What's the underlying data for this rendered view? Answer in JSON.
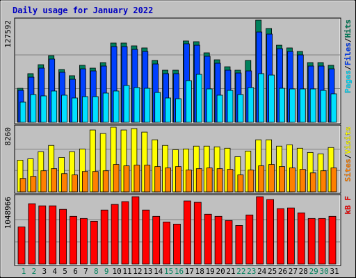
{
  "title": "Daily usage for January 2022",
  "legend_separator": "/",
  "chart_data": [
    {
      "type": "bar",
      "ylim": [
        0,
        127592
      ],
      "yticks": [
        127592
      ],
      "series": [
        {
          "name": "Hits",
          "color": "#00805c",
          "values": [
            42500,
            60800,
            72000,
            83300,
            66000,
            58200,
            71200,
            67700,
            74600,
            99000,
            99000,
            95500,
            92900,
            77300,
            65100,
            65100,
            101600,
            100700,
            86800,
            78100,
            69400,
            65100,
            77300,
            127592,
            117200,
            96300,
            92900,
            88500,
            74600,
            74600,
            71200
          ]
        },
        {
          "name": "Files",
          "color": "#0040ff",
          "values": [
            39900,
            56400,
            67700,
            79000,
            62500,
            53800,
            66800,
            64200,
            70300,
            94600,
            94600,
            91100,
            88500,
            72900,
            60800,
            60800,
            98100,
            96300,
            82500,
            73800,
            65100,
            61600,
            64200,
            112800,
            110200,
            92000,
            88500,
            84200,
            70300,
            70300,
            66800
          ]
        },
        {
          "name": "Pages",
          "color": "#00e0ff",
          "values": [
            25200,
            34700,
            33000,
            39100,
            33900,
            30400,
            32100,
            32100,
            36500,
            39100,
            46000,
            43400,
            42500,
            37300,
            30400,
            29500,
            52100,
            59900,
            41700,
            33900,
            39900,
            34700,
            43400,
            60800,
            59000,
            42500,
            41700,
            41700,
            41700,
            39900,
            35600
          ]
        }
      ]
    },
    {
      "type": "bar",
      "ylim": [
        0,
        8260
      ],
      "yticks": [
        8260
      ],
      "series": [
        {
          "name": "Visits",
          "color": "#ffff00",
          "values": [
            4040,
            4220,
            5120,
            5930,
            4400,
            5120,
            5480,
            7900,
            7450,
            8260,
            7900,
            8080,
            7630,
            6650,
            5930,
            5390,
            5480,
            5840,
            5840,
            5750,
            5570,
            4490,
            5210,
            6650,
            6650,
            5840,
            6020,
            5570,
            5030,
            4850,
            5660
          ]
        },
        {
          "name": "Sites",
          "color": "#ff8000",
          "values": [
            1710,
            1980,
            2690,
            2960,
            2330,
            2160,
            2600,
            2600,
            2690,
            3500,
            3320,
            3410,
            3410,
            3230,
            3050,
            3230,
            2780,
            2960,
            3050,
            2960,
            2870,
            2160,
            2780,
            3320,
            3500,
            3230,
            3050,
            2870,
            2420,
            2690,
            3050
          ]
        }
      ]
    },
    {
      "type": "bar",
      "ylim": [
        0,
        1048966
      ],
      "yticks": [
        1048966
      ],
      "categories": [
        "1",
        "2",
        "3",
        "4",
        "5",
        "6",
        "7",
        "8",
        "9",
        "10",
        "11",
        "12",
        "13",
        "14",
        "15",
        "16",
        "17",
        "18",
        "19",
        "20",
        "21",
        "22",
        "23",
        "24",
        "25",
        "26",
        "27",
        "28",
        "29",
        "30",
        "31"
      ],
      "label_colors": [
        "#00805c",
        "#00805c",
        "#000000",
        "#000000",
        "#000000",
        "#000000",
        "#000000",
        "#00805c",
        "#00805c",
        "#000000",
        "#000000",
        "#000000",
        "#000000",
        "#000000",
        "#00805c",
        "#00805c",
        "#000000",
        "#000000",
        "#000000",
        "#000000",
        "#000000",
        "#00805c",
        "#00805c",
        "#000000",
        "#000000",
        "#000000",
        "#000000",
        "#000000",
        "#00805c",
        "#00805c",
        "#000000"
      ],
      "series": [
        {
          "name": "kB F",
          "color": "#ff0000",
          "values": [
            579100,
            939700,
            906900,
            906900,
            852300,
            743000,
            710300,
            666500,
            841400,
            928800,
            972500,
            1048966,
            841400,
            743000,
            655600,
            622800,
            983400,
            961600,
            775800,
            743000,
            677500,
            601000,
            764900,
            1048966,
            1005300,
            863200,
            874200,
            797700,
            710300,
            710300,
            743000
          ]
        }
      ]
    }
  ]
}
